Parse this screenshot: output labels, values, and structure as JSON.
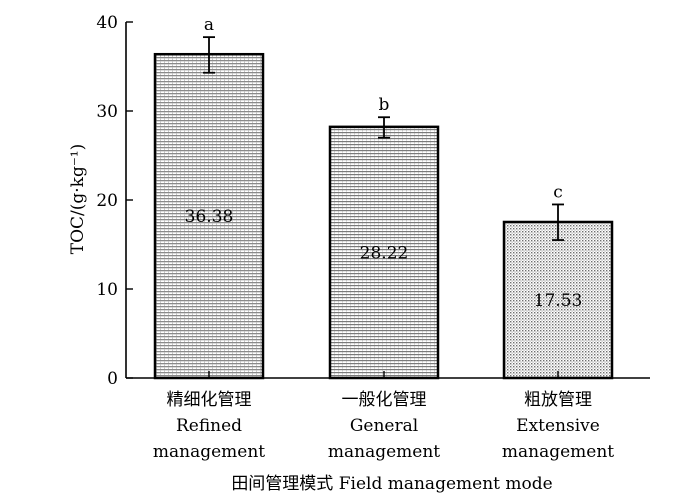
{
  "chart_data": {
    "type": "bar",
    "ylabel": "TOC/(g·kg⁻¹)",
    "xlabel": "田间管理模式 Field management mode",
    "ylim": [
      0,
      40
    ],
    "yticks": [
      0,
      10,
      20,
      30,
      40
    ],
    "grid": false,
    "categories": [
      {
        "zh": "精细化管理",
        "en1": "Refined",
        "en2": "management"
      },
      {
        "zh": "一般化管理",
        "en1": "General",
        "en2": "management"
      },
      {
        "zh": "粗放管理",
        "en1": "Extensive",
        "en2": "management"
      }
    ],
    "values": [
      36.38,
      28.22,
      17.53
    ],
    "value_labels": [
      "36.38",
      "28.22",
      "17.53"
    ],
    "error_bars": [
      {
        "low": 34.3,
        "high": 38.3
      },
      {
        "low": 27.0,
        "high": 29.3
      },
      {
        "low": 15.5,
        "high": 19.5
      }
    ],
    "significance_letters": [
      "a",
      "b",
      "c"
    ],
    "patterns": [
      "hlines-grid",
      "hlines-dense",
      "dots"
    ]
  }
}
